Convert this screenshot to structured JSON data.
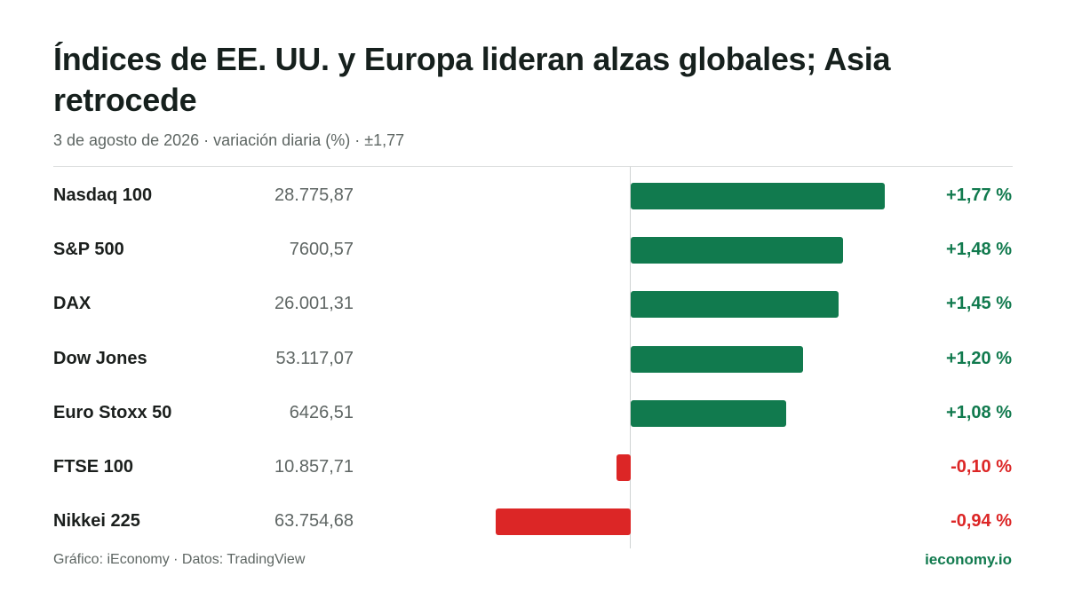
{
  "title": "Índices de EE. UU. y Europa lideran alzas globales; Asia retrocede",
  "subtitle": "3 de agosto de 2026 · variación diaria (%) · ±1,77",
  "footer": {
    "source": "Gráfico: iEconomy · Datos: TradingView",
    "brand": "ieconomy.io"
  },
  "colors": {
    "positive": "#117a4e",
    "negative": "#dc2626"
  },
  "chart_data": {
    "type": "bar",
    "orientation": "horizontal",
    "unit": "%",
    "xlim": [
      -1.77,
      1.77
    ],
    "grid": false,
    "categories": [
      "Nasdaq 100",
      "S&P 500",
      "DAX",
      "Dow Jones",
      "Euro Stoxx 50",
      "FTSE 100",
      "Nikkei 225"
    ],
    "prices": [
      "28.775,87",
      "7600,57",
      "26.001,31",
      "53.117,07",
      "6426,51",
      "10.857,71",
      "63.754,68"
    ],
    "values": [
      1.77,
      1.48,
      1.45,
      1.2,
      1.08,
      -0.1,
      -0.94
    ],
    "value_labels": [
      "+1,77 %",
      "+1,48 %",
      "+1,45 %",
      "+1,20 %",
      "+1,08 %",
      "-0,10 %",
      "-0,94 %"
    ]
  }
}
